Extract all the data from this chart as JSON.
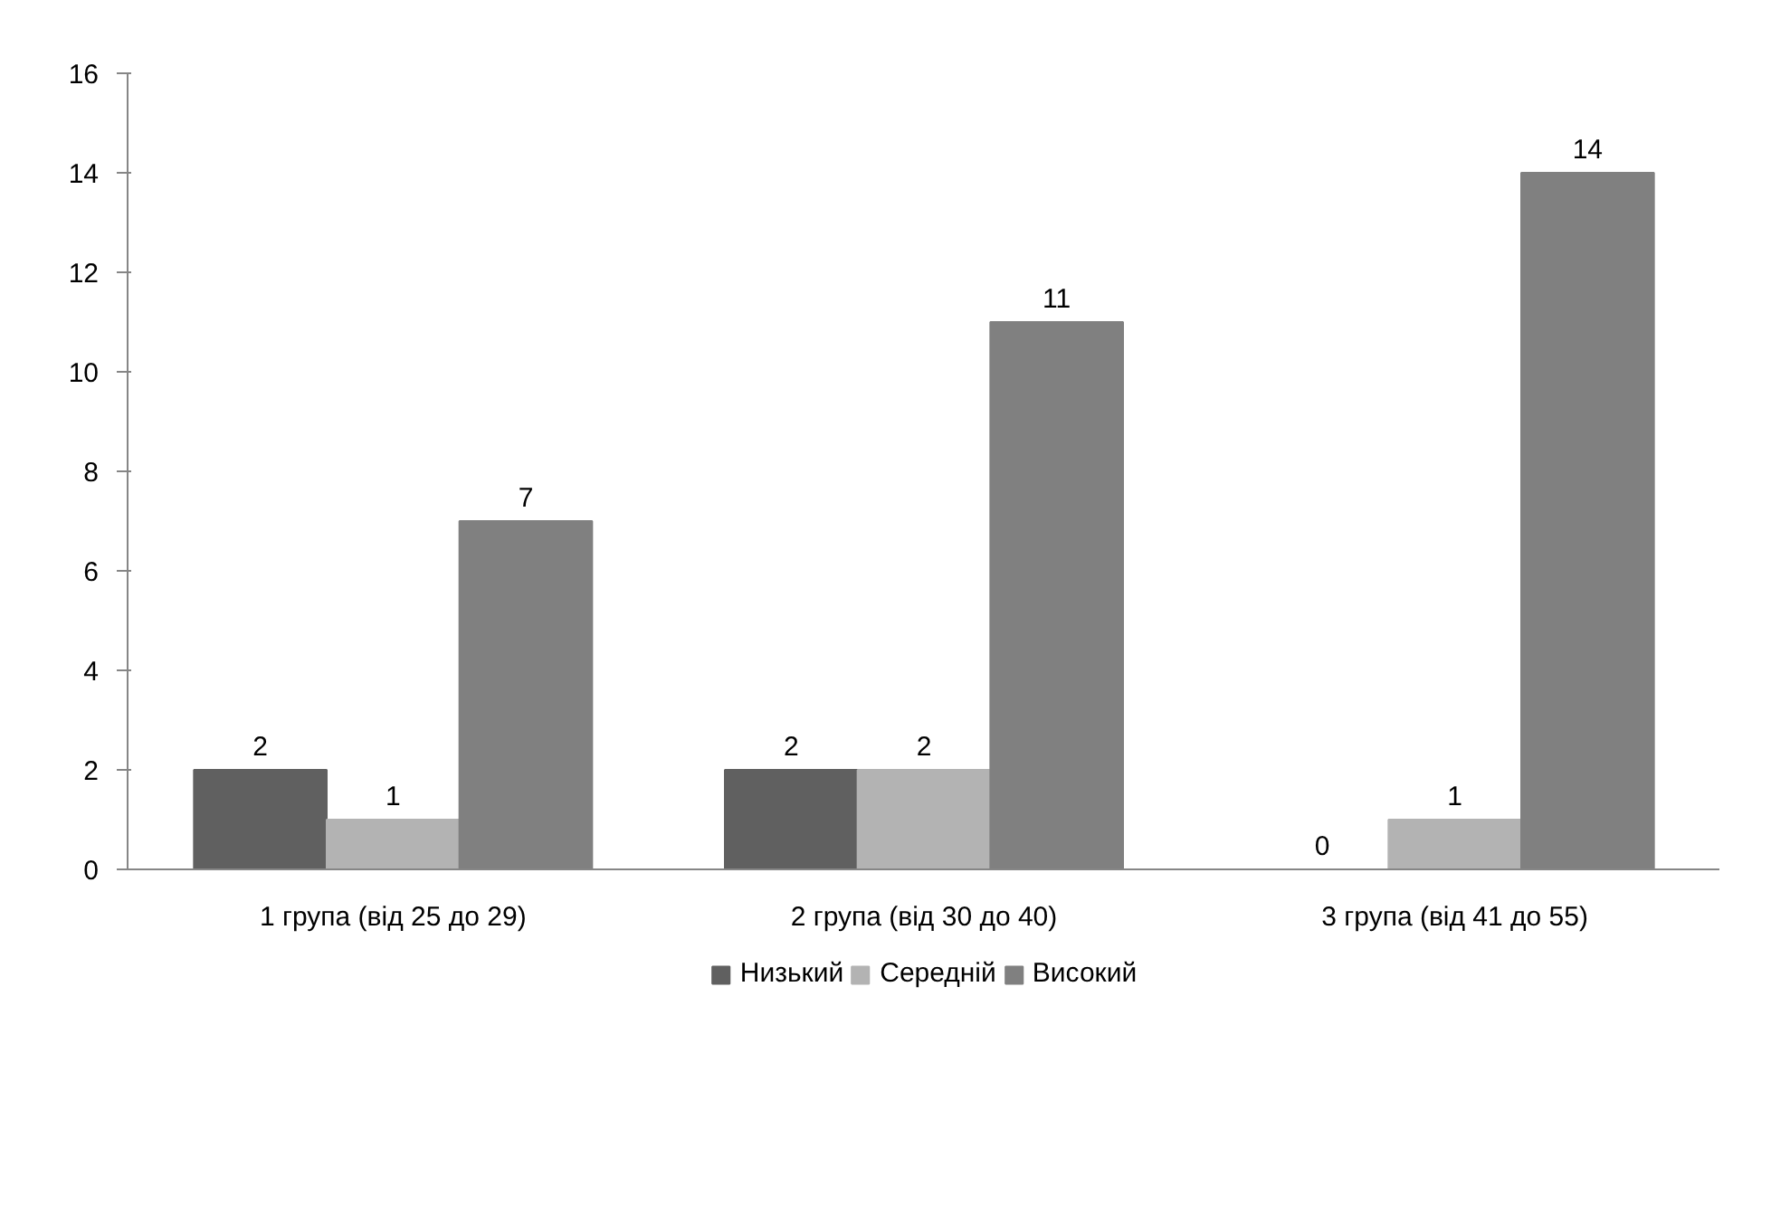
{
  "chart_data": {
    "type": "bar",
    "categories": [
      "1 група (від 25 до 29)",
      "2 група (від 30 до 40)",
      "3 група (від 41 до 55)"
    ],
    "series": [
      {
        "name": "Низький",
        "color": "#606060",
        "values": [
          2,
          2,
          0
        ]
      },
      {
        "name": "Середній",
        "color": "#b3b3b3",
        "values": [
          1,
          2,
          1
        ]
      },
      {
        "name": "Високий",
        "color": "#808080",
        "values": [
          7,
          11,
          14
        ]
      }
    ],
    "ylim": [
      0,
      16
    ],
    "yticks": [
      0,
      2,
      4,
      6,
      8,
      10,
      12,
      14,
      16
    ],
    "grid": false,
    "legend": "bottom",
    "data_labels": true
  }
}
